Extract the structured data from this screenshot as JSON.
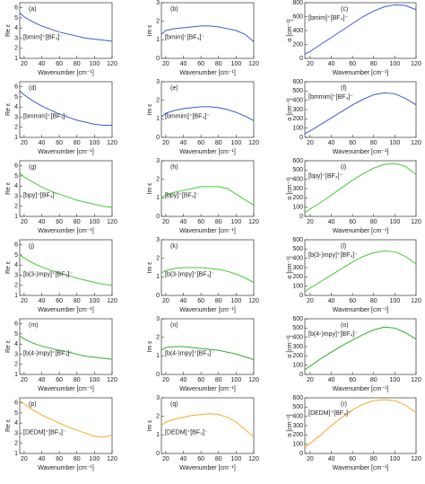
{
  "chart_data": [
    {
      "type": "line",
      "panel": "(a)",
      "label": "[bmim]⁺[BF₄]⁻",
      "xlabel": "Wavenumber [cm⁻¹]",
      "ylabel": "Re ε",
      "x": [
        15,
        20,
        30,
        40,
        50,
        60,
        70,
        80,
        90,
        100,
        110,
        120
      ],
      "series": [
        {
          "color": "#3b5bcc",
          "values": [
            5.5,
            5.1,
            4.6,
            4.2,
            3.9,
            3.6,
            3.4,
            3.2,
            3.0,
            2.9,
            2.8,
            2.7
          ]
        }
      ],
      "xlim": [
        15,
        120
      ],
      "xticks": [
        20,
        40,
        60,
        80,
        100,
        120
      ],
      "ylim": [
        1,
        6.5
      ],
      "yticks": [
        1,
        2,
        3,
        4,
        5,
        6
      ]
    },
    {
      "type": "line",
      "panel": "(b)",
      "label": "[bmim]⁺[BF₄]⁻",
      "xlabel": "Wavenumber [cm⁻¹]",
      "ylabel": "Im ε",
      "x": [
        15,
        20,
        30,
        40,
        50,
        60,
        70,
        80,
        90,
        100,
        110,
        120
      ],
      "series": [
        {
          "color": "#3b5bcc",
          "values": [
            1.3,
            1.5,
            1.6,
            1.65,
            1.7,
            1.75,
            1.75,
            1.7,
            1.6,
            1.5,
            1.3,
            0.9
          ]
        }
      ],
      "xlim": [
        15,
        120
      ],
      "xticks": [
        20,
        40,
        60,
        80,
        100,
        120
      ],
      "ylim": [
        0,
        3
      ],
      "yticks": [
        0,
        1,
        2,
        3
      ]
    },
    {
      "type": "line",
      "panel": "(c)",
      "label": "[bmim]⁺[BF₄]⁻",
      "xlabel": "Wavenumber [cm⁻¹]",
      "ylabel": "α [cm⁻¹]",
      "x": [
        15,
        20,
        30,
        40,
        50,
        60,
        70,
        80,
        90,
        100,
        110,
        120
      ],
      "series": [
        {
          "color": "#3b5bcc",
          "values": [
            60,
            100,
            200,
            300,
            400,
            500,
            600,
            680,
            740,
            770,
            760,
            700
          ]
        }
      ],
      "xlim": [
        15,
        120
      ],
      "xticks": [
        20,
        40,
        60,
        80,
        100,
        120
      ],
      "ylim": [
        0,
        800
      ],
      "yticks": [
        0,
        200,
        400,
        600,
        800
      ]
    },
    {
      "type": "line",
      "panel": "(d)",
      "label": "[bmmim]⁺[BF₄]⁻",
      "xlabel": "Wavenumber [cm⁻¹]",
      "ylabel": "Re ε",
      "x": [
        15,
        20,
        30,
        40,
        50,
        60,
        70,
        80,
        90,
        100,
        110,
        120
      ],
      "series": [
        {
          "color": "#3b5bcc",
          "values": [
            5.6,
            5.2,
            4.6,
            4.1,
            3.7,
            3.3,
            3.0,
            2.7,
            2.5,
            2.3,
            2.2,
            2.2
          ]
        }
      ],
      "xlim": [
        15,
        120
      ],
      "xticks": [
        20,
        40,
        60,
        80,
        100,
        120
      ],
      "ylim": [
        1,
        6.5
      ],
      "yticks": [
        1,
        2,
        3,
        4,
        5,
        6
      ]
    },
    {
      "type": "line",
      "panel": "(e)",
      "label": "[bmmim]⁺[BF₄]⁻",
      "xlabel": "Wavenumber [cm⁻¹]",
      "ylabel": "Im ε",
      "x": [
        15,
        20,
        30,
        40,
        50,
        60,
        70,
        80,
        90,
        100,
        110,
        120
      ],
      "series": [
        {
          "color": "#3b5bcc",
          "values": [
            1.1,
            1.3,
            1.45,
            1.55,
            1.6,
            1.65,
            1.65,
            1.6,
            1.5,
            1.35,
            1.15,
            0.9
          ]
        }
      ],
      "xlim": [
        15,
        120
      ],
      "xticks": [
        20,
        40,
        60,
        80,
        100,
        120
      ],
      "ylim": [
        0,
        3
      ],
      "yticks": [
        0,
        1,
        2,
        3
      ]
    },
    {
      "type": "line",
      "panel": "(f)",
      "label": "[bmmim]⁺[BF₄]⁻",
      "xlabel": "Wavenumber [cm⁻¹]",
      "ylabel": "α [cm⁻¹]",
      "x": [
        15,
        20,
        30,
        40,
        50,
        60,
        70,
        80,
        90,
        100,
        110,
        120
      ],
      "series": [
        {
          "color": "#3b5bcc",
          "values": [
            40,
            70,
            140,
            210,
            280,
            350,
            410,
            460,
            480,
            470,
            420,
            350
          ]
        }
      ],
      "xlim": [
        15,
        120
      ],
      "xticks": [
        20,
        40,
        60,
        80,
        100,
        120
      ],
      "ylim": [
        0,
        600
      ],
      "yticks": [
        0,
        100,
        200,
        300,
        400,
        500,
        600
      ]
    },
    {
      "type": "line",
      "panel": "(g)",
      "label": "[bpy]⁺[BF₄]⁻",
      "xlabel": "Wavenumber [cm⁻¹]",
      "ylabel": "Re ε",
      "x": [
        15,
        20,
        30,
        40,
        50,
        60,
        70,
        80,
        90,
        100,
        110,
        120
      ],
      "series": [
        {
          "color": "#44cc33",
          "values": [
            5.3,
            4.9,
            4.4,
            3.9,
            3.5,
            3.2,
            2.9,
            2.6,
            2.4,
            2.2,
            2.0,
            1.9
          ]
        }
      ],
      "xlim": [
        15,
        120
      ],
      "xticks": [
        20,
        40,
        60,
        80,
        100,
        120
      ],
      "ylim": [
        1,
        6.5
      ],
      "yticks": [
        1,
        2,
        3,
        4,
        5,
        6
      ]
    },
    {
      "type": "line",
      "panel": "(h)",
      "label": "[bpy]⁺[BF₄]⁻",
      "xlabel": "Wavenumber [cm⁻¹]",
      "ylabel": "Im ε",
      "x": [
        15,
        20,
        30,
        40,
        50,
        60,
        70,
        80,
        90,
        100,
        110,
        120
      ],
      "series": [
        {
          "color": "#44cc33",
          "values": [
            1.0,
            1.15,
            1.3,
            1.4,
            1.5,
            1.6,
            1.6,
            1.6,
            1.5,
            1.2,
            0.9,
            0.6
          ]
        }
      ],
      "xlim": [
        15,
        120
      ],
      "xticks": [
        20,
        40,
        60,
        80,
        100,
        120
      ],
      "ylim": [
        0,
        3
      ],
      "yticks": [
        0,
        1,
        2,
        3
      ]
    },
    {
      "type": "line",
      "panel": "(i)",
      "label": "[bpy]⁺[BF₄]⁻",
      "xlabel": "Wavenumber [cm⁻¹]",
      "ylabel": "α [cm⁻¹]",
      "x": [
        15,
        20,
        30,
        40,
        50,
        60,
        70,
        80,
        90,
        100,
        110,
        120
      ],
      "series": [
        {
          "color": "#44cc33",
          "values": [
            40,
            80,
            150,
            230,
            310,
            390,
            460,
            520,
            560,
            570,
            540,
            450
          ]
        }
      ],
      "xlim": [
        15,
        120
      ],
      "xticks": [
        20,
        40,
        60,
        80,
        100,
        120
      ],
      "ylim": [
        0,
        600
      ],
      "yticks": [
        0,
        100,
        200,
        300,
        400,
        500,
        600
      ]
    },
    {
      "type": "line",
      "panel": "(j)",
      "label": "[b(3-)mpy]⁺[BF₄]⁻",
      "xlabel": "Wavenumber [cm⁻¹]",
      "ylabel": "Re ε",
      "x": [
        15,
        20,
        30,
        40,
        50,
        60,
        70,
        80,
        90,
        100,
        110,
        120
      ],
      "series": [
        {
          "color": "#44cc33",
          "values": [
            5.0,
            4.7,
            4.2,
            3.8,
            3.5,
            3.2,
            3.0,
            2.7,
            2.5,
            2.3,
            2.1,
            2.0
          ]
        }
      ],
      "xlim": [
        15,
        120
      ],
      "xticks": [
        20,
        40,
        60,
        80,
        100,
        120
      ],
      "ylim": [
        1,
        6.5
      ],
      "yticks": [
        1,
        2,
        3,
        4,
        5,
        6
      ]
    },
    {
      "type": "line",
      "panel": "(k)",
      "label": "[b(3-)mpy]⁺[BF₄]⁻",
      "xlabel": "Wavenumber [cm⁻¹]",
      "ylabel": "Im ε",
      "x": [
        15,
        20,
        30,
        40,
        50,
        60,
        70,
        80,
        90,
        100,
        110,
        120
      ],
      "series": [
        {
          "color": "#44cc33",
          "values": [
            1.2,
            1.35,
            1.45,
            1.5,
            1.5,
            1.5,
            1.45,
            1.4,
            1.3,
            1.15,
            0.95,
            0.7
          ]
        }
      ],
      "xlim": [
        15,
        120
      ],
      "xticks": [
        20,
        40,
        60,
        80,
        100,
        120
      ],
      "ylim": [
        0,
        3
      ],
      "yticks": [
        0,
        1,
        2,
        3
      ]
    },
    {
      "type": "line",
      "panel": "(l)",
      "label": "[b(3-)mpy]⁺[BF₄]⁻",
      "xlabel": "Wavenumber [cm⁻¹]",
      "ylabel": "α [cm⁻¹]",
      "x": [
        15,
        20,
        30,
        40,
        50,
        60,
        70,
        80,
        90,
        100,
        110,
        120
      ],
      "series": [
        {
          "color": "#44cc33",
          "values": [
            40,
            80,
            150,
            220,
            290,
            360,
            420,
            460,
            480,
            470,
            420,
            340
          ]
        }
      ],
      "xlim": [
        15,
        120
      ],
      "xticks": [
        20,
        40,
        60,
        80,
        100,
        120
      ],
      "ylim": [
        0,
        600
      ],
      "yticks": [
        0,
        100,
        200,
        300,
        400,
        500,
        600
      ]
    },
    {
      "type": "line",
      "panel": "(m)",
      "label": "[b(4-)mpy]⁺[BF₄]⁻",
      "xlabel": "Wavenumber [cm⁻¹]",
      "ylabel": "Re ε",
      "x": [
        15,
        20,
        30,
        40,
        50,
        60,
        70,
        80,
        90,
        100,
        110,
        120
      ],
      "series": [
        {
          "color": "#33aa33",
          "values": [
            4.8,
            4.5,
            4.1,
            3.8,
            3.6,
            3.4,
            3.2,
            3.0,
            2.8,
            2.7,
            2.6,
            2.5
          ]
        }
      ],
      "xlim": [
        15,
        120
      ],
      "xticks": [
        20,
        40,
        60,
        80,
        100,
        120
      ],
      "ylim": [
        1,
        6.5
      ],
      "yticks": [
        1,
        2,
        3,
        4,
        5,
        6
      ]
    },
    {
      "type": "line",
      "panel": "(n)",
      "label": "[b(4-)mpy]⁺[BF₄]⁻",
      "xlabel": "Wavenumber [cm⁻¹]",
      "ylabel": "Im ε",
      "x": [
        15,
        20,
        30,
        40,
        50,
        60,
        70,
        80,
        90,
        100,
        110,
        120
      ],
      "series": [
        {
          "color": "#33aa33",
          "values": [
            1.3,
            1.45,
            1.5,
            1.5,
            1.45,
            1.4,
            1.35,
            1.3,
            1.2,
            1.1,
            0.95,
            0.8
          ]
        }
      ],
      "xlim": [
        15,
        120
      ],
      "xticks": [
        20,
        40,
        60,
        80,
        100,
        120
      ],
      "ylim": [
        0,
        3
      ],
      "yticks": [
        0,
        1,
        2,
        3
      ]
    },
    {
      "type": "line",
      "panel": "(o)",
      "label": "[b(4-)mpy]⁺[BF₄]⁻",
      "xlabel": "Wavenumber [cm⁻¹]",
      "ylabel": "α [cm⁻¹]",
      "x": [
        15,
        20,
        30,
        40,
        50,
        60,
        70,
        80,
        90,
        100,
        110,
        120
      ],
      "series": [
        {
          "color": "#33aa33",
          "values": [
            50,
            90,
            170,
            240,
            310,
            370,
            430,
            480,
            510,
            500,
            450,
            380
          ]
        }
      ],
      "xlim": [
        15,
        120
      ],
      "xticks": [
        20,
        40,
        60,
        80,
        100,
        120
      ],
      "ylim": [
        0,
        600
      ],
      "yticks": [
        0,
        100,
        200,
        300,
        400,
        500,
        600
      ]
    },
    {
      "type": "line",
      "panel": "(p)",
      "label": "[DEDM]⁺[BF₄]⁻",
      "xlabel": "Wavenumber [cm⁻¹]",
      "ylabel": "Re ε",
      "x": [
        15,
        20,
        30,
        40,
        50,
        60,
        70,
        80,
        90,
        100,
        110,
        120
      ],
      "series": [
        {
          "color": "#f5aa2a",
          "values": [
            6.2,
            5.9,
            5.3,
            4.8,
            4.4,
            4.0,
            3.6,
            3.3,
            3.0,
            2.7,
            2.6,
            2.8
          ]
        }
      ],
      "xlim": [
        15,
        120
      ],
      "xticks": [
        20,
        40,
        60,
        80,
        100,
        120
      ],
      "ylim": [
        1,
        6.5
      ],
      "yticks": [
        1,
        2,
        3,
        4,
        5,
        6
      ]
    },
    {
      "type": "line",
      "panel": "(q)",
      "label": "[DEDM]⁺[BF₄]⁻",
      "xlabel": "Wavenumber [cm⁻¹]",
      "ylabel": "Im ε",
      "x": [
        15,
        20,
        30,
        40,
        50,
        60,
        70,
        80,
        90,
        100,
        110,
        120
      ],
      "series": [
        {
          "color": "#f5aa2a",
          "values": [
            1.5,
            1.7,
            1.85,
            1.95,
            2.05,
            2.1,
            2.15,
            2.1,
            1.95,
            1.7,
            1.3,
            0.9
          ]
        }
      ],
      "xlim": [
        15,
        120
      ],
      "xticks": [
        20,
        40,
        60,
        80,
        100,
        120
      ],
      "ylim": [
        0,
        3
      ],
      "yticks": [
        0,
        1,
        2,
        3
      ]
    },
    {
      "type": "line",
      "panel": "(r)",
      "label": "[DEDM]⁺[BF₄]⁻",
      "xlabel": "Wavenumber [cm⁻¹]",
      "ylabel": "α [cm⁻¹]",
      "x": [
        15,
        20,
        30,
        40,
        50,
        60,
        70,
        80,
        90,
        100,
        110,
        120
      ],
      "series": [
        {
          "color": "#f5aa2a",
          "values": [
            60,
            110,
            200,
            300,
            390,
            470,
            530,
            570,
            580,
            570,
            520,
            440
          ]
        }
      ],
      "xlim": [
        15,
        120
      ],
      "xticks": [
        20,
        40,
        60,
        80,
        100,
        120
      ],
      "ylim": [
        0,
        600
      ],
      "yticks": [
        0,
        100,
        200,
        300,
        400,
        500,
        600
      ]
    }
  ]
}
